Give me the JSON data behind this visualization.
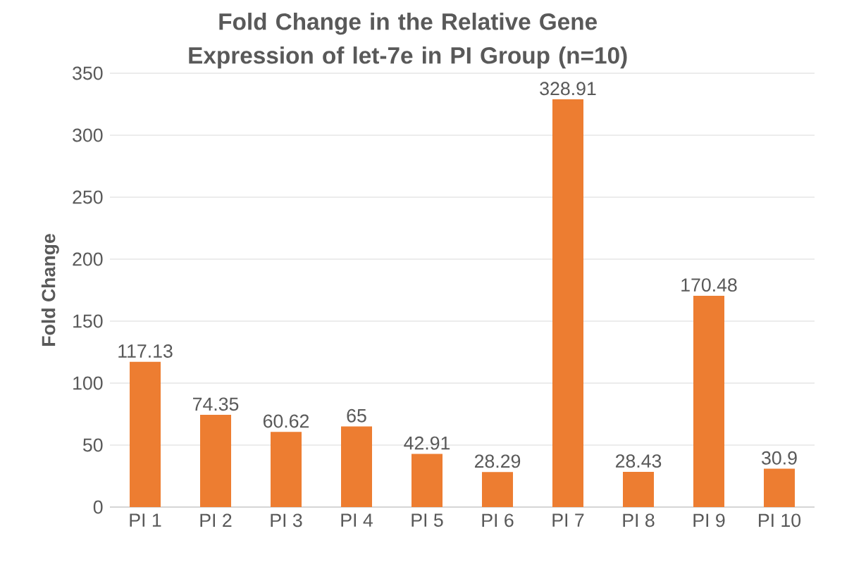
{
  "chart_data": {
    "type": "bar",
    "title": "Fold Change in the Relative Gene Expression of let-7e in PI Group (n=10)",
    "ylabel": "Fold Change",
    "categories": [
      "PI 1",
      "PI 2",
      "PI 3",
      "PI 4",
      "PI 5",
      "PI 6",
      "PI 7",
      "PI 8",
      "PI 9",
      "PI 10"
    ],
    "values": [
      117.13,
      74.35,
      60.62,
      65,
      42.91,
      28.29,
      328.91,
      28.43,
      170.48,
      30.9
    ],
    "color": "#ed7d31",
    "ylim": [
      0,
      350
    ],
    "yticks": [
      0,
      50,
      100,
      150,
      200,
      250,
      300,
      350
    ],
    "grid": "y",
    "data_labels": true
  }
}
